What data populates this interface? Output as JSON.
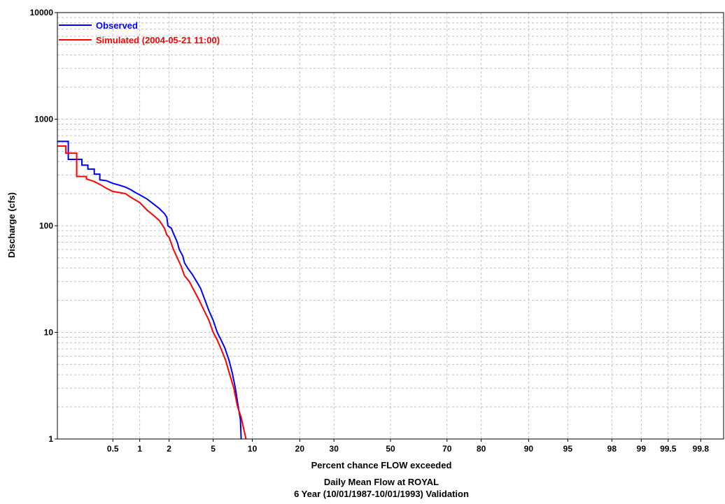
{
  "chart_data": {
    "type": "line",
    "title": "Daily Mean Flow at ROYAL",
    "subtitle": "6 Year (10/01/1987-10/01/1993) Validation",
    "xlabel": "Percent chance FLOW exceeded",
    "ylabel": "Discharge (cfs)",
    "x_scale": "probability",
    "y_scale": "log",
    "xlim": [
      0.1,
      99.9
    ],
    "ylim": [
      1,
      10000
    ],
    "grid": true,
    "legend_position": "top-left",
    "x_ticks": [
      0.5,
      1,
      2,
      5,
      10,
      20,
      30,
      50,
      70,
      80,
      90,
      95,
      98,
      99,
      99.5,
      99.8
    ],
    "x_tick_labels": [
      "0.5",
      "1",
      "2",
      "5",
      "10",
      "20",
      "30",
      "50",
      "70",
      "80",
      "90",
      "95",
      "98",
      "99",
      "99.5",
      "99.8"
    ],
    "y_ticks": [
      1,
      10,
      100,
      1000,
      10000
    ],
    "y_tick_labels": [
      "1",
      "10",
      "100",
      "1000",
      "10000"
    ],
    "series": [
      {
        "name": "Observed",
        "color": "#0000ff",
        "points": [
          [
            0.1,
            620
          ],
          [
            0.14,
            620
          ],
          [
            0.14,
            420
          ],
          [
            0.21,
            420
          ],
          [
            0.21,
            370
          ],
          [
            0.25,
            370
          ],
          [
            0.25,
            340
          ],
          [
            0.3,
            340
          ],
          [
            0.3,
            305
          ],
          [
            0.35,
            305
          ],
          [
            0.35,
            270
          ],
          [
            0.42,
            265
          ],
          [
            0.5,
            250
          ],
          [
            0.6,
            240
          ],
          [
            0.7,
            230
          ],
          [
            0.8,
            218
          ],
          [
            0.9,
            205
          ],
          [
            1.0,
            195
          ],
          [
            1.2,
            178
          ],
          [
            1.4,
            160
          ],
          [
            1.6,
            145
          ],
          [
            1.8,
            130
          ],
          [
            1.9,
            120
          ],
          [
            1.95,
            100
          ],
          [
            2.1,
            95
          ],
          [
            2.2,
            85
          ],
          [
            2.4,
            70
          ],
          [
            2.5,
            60
          ],
          [
            2.7,
            52
          ],
          [
            2.8,
            45
          ],
          [
            3.0,
            40
          ],
          [
            3.3,
            35
          ],
          [
            3.6,
            30
          ],
          [
            3.9,
            26
          ],
          [
            4.2,
            21
          ],
          [
            4.6,
            16
          ],
          [
            5.0,
            13
          ],
          [
            5.4,
            10
          ],
          [
            5.8,
            8.5
          ],
          [
            6.2,
            7.2
          ],
          [
            6.7,
            5.5
          ],
          [
            7.1,
            4.2
          ],
          [
            7.5,
            3.0
          ],
          [
            7.9,
            2.0
          ],
          [
            8.2,
            1.5
          ],
          [
            8.3,
            1.0
          ]
        ]
      },
      {
        "name": "Simulated (2004-05-21 11:00)",
        "color": "#ff0000",
        "points": [
          [
            0.1,
            560
          ],
          [
            0.13,
            560
          ],
          [
            0.13,
            480
          ],
          [
            0.18,
            480
          ],
          [
            0.18,
            290
          ],
          [
            0.24,
            290
          ],
          [
            0.24,
            275
          ],
          [
            0.3,
            260
          ],
          [
            0.35,
            245
          ],
          [
            0.42,
            225
          ],
          [
            0.5,
            210
          ],
          [
            0.6,
            205
          ],
          [
            0.7,
            200
          ],
          [
            0.8,
            185
          ],
          [
            1.0,
            165
          ],
          [
            1.2,
            140
          ],
          [
            1.4,
            125
          ],
          [
            1.6,
            112
          ],
          [
            1.8,
            95
          ],
          [
            1.9,
            82
          ],
          [
            2.0,
            78
          ],
          [
            2.2,
            60
          ],
          [
            2.4,
            50
          ],
          [
            2.6,
            42
          ],
          [
            2.8,
            34
          ],
          [
            3.1,
            30
          ],
          [
            3.4,
            25
          ],
          [
            3.8,
            20
          ],
          [
            4.2,
            16
          ],
          [
            4.6,
            13
          ],
          [
            5.0,
            10
          ],
          [
            5.4,
            8.5
          ],
          [
            5.8,
            7.0
          ],
          [
            6.3,
            5.5
          ],
          [
            6.8,
            4.0
          ],
          [
            7.3,
            3.0
          ],
          [
            7.8,
            2.0
          ],
          [
            8.3,
            1.6
          ],
          [
            8.6,
            1.3
          ],
          [
            9.0,
            1.0
          ]
        ]
      }
    ]
  }
}
